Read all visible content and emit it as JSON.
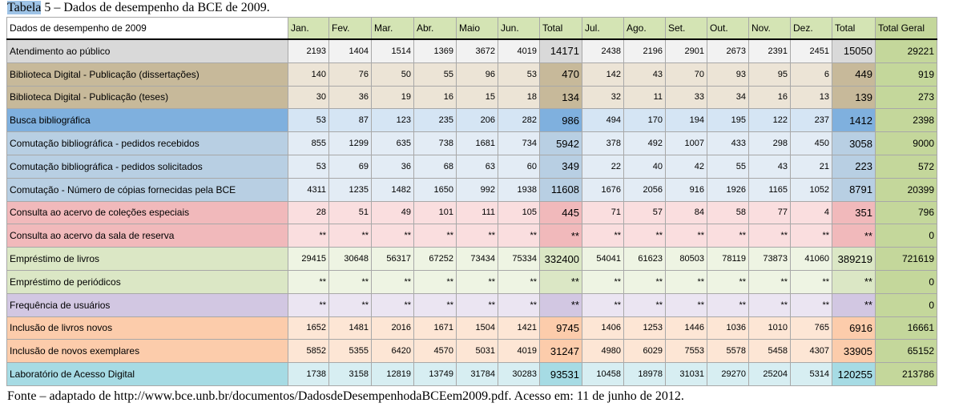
{
  "caption": {
    "prefix": "Tabela",
    "text": " 5 – Dados de desempenho da BCE de 2009."
  },
  "table": {
    "headers": [
      "Dados de desempenho de 2009",
      "Jan.",
      "Fev.",
      "Mar.",
      "Abr.",
      "Maio",
      "Jun.",
      "Total",
      "Jul.",
      "Ago.",
      "Set.",
      "Out.",
      "Nov.",
      "Dez.",
      "Total",
      "Total Geral"
    ],
    "rows": [
      {
        "label": "Atendimento ao público",
        "values": [
          "2193",
          "1404",
          "1514",
          "1369",
          "3672",
          "4019",
          "14171",
          "2438",
          "2196",
          "2901",
          "2673",
          "2391",
          "2451",
          "15050",
          "29221"
        ],
        "colors": {
          "label": "#d9d9d9",
          "cell": "#f2f2f2",
          "total": "#d9d9d9"
        }
      },
      {
        "label": "Biblioteca Digital - Publicação (dissertações)",
        "values": [
          "140",
          "76",
          "50",
          "55",
          "96",
          "53",
          "470",
          "142",
          "43",
          "70",
          "93",
          "95",
          "6",
          "449",
          "919"
        ],
        "colors": {
          "label": "#c7b99a",
          "cell": "#ece4d6",
          "total": "#c7b99a"
        }
      },
      {
        "label": "Biblioteca Digital - Publicação (teses)",
        "values": [
          "30",
          "36",
          "19",
          "16",
          "15",
          "18",
          "134",
          "32",
          "11",
          "33",
          "34",
          "16",
          "13",
          "139",
          "273"
        ],
        "colors": {
          "label": "#c7b99a",
          "cell": "#ece4d6",
          "total": "#c7b99a"
        }
      },
      {
        "label": "Busca bibliográfica",
        "values": [
          "53",
          "87",
          "123",
          "235",
          "206",
          "282",
          "986",
          "494",
          "170",
          "194",
          "195",
          "122",
          "237",
          "1412",
          "2398"
        ],
        "colors": {
          "label": "#7fb0de",
          "cell": "#d5e5f4",
          "total": "#7fb0de"
        }
      },
      {
        "label": "Comutação bibliográfica - pedidos recebidos",
        "values": [
          "855",
          "1299",
          "635",
          "738",
          "1681",
          "734",
          "5942",
          "378",
          "492",
          "1007",
          "433",
          "298",
          "450",
          "3058",
          "9000"
        ],
        "colors": {
          "label": "#b8cfe3",
          "cell": "#e3ecf5",
          "total": "#b8cfe3"
        }
      },
      {
        "label": "Comutação bibliográfica - pedidos solicitados",
        "values": [
          "53",
          "69",
          "36",
          "68",
          "63",
          "60",
          "349",
          "22",
          "40",
          "42",
          "55",
          "43",
          "21",
          "223",
          "572"
        ],
        "colors": {
          "label": "#b8cfe3",
          "cell": "#e3ecf5",
          "total": "#b8cfe3"
        }
      },
      {
        "label": "Comutação - Número de cópias fornecidas pela BCE",
        "values": [
          "4311",
          "1235",
          "1482",
          "1650",
          "992",
          "1938",
          "11608",
          "1676",
          "2056",
          "916",
          "1926",
          "1165",
          "1052",
          "8791",
          "20399"
        ],
        "colors": {
          "label": "#b8cfe3",
          "cell": "#e3ecf5",
          "total": "#b8cfe3"
        }
      },
      {
        "label": "Consulta ao acervo de coleções especiais",
        "values": [
          "28",
          "51",
          "49",
          "101",
          "111",
          "105",
          "445",
          "71",
          "57",
          "84",
          "58",
          "77",
          "4",
          "351",
          "796"
        ],
        "colors": {
          "label": "#f1b9bb",
          "cell": "#fadedf",
          "total": "#f1b9bb"
        }
      },
      {
        "label": "Consulta ao acervo da sala de reserva",
        "values": [
          "**",
          "**",
          "**",
          "**",
          "**",
          "**",
          "**",
          "**",
          "**",
          "**",
          "**",
          "**",
          "**",
          "**",
          "0"
        ],
        "colors": {
          "label": "#f1b9bb",
          "cell": "#fadedf",
          "total": "#f1b9bb"
        }
      },
      {
        "label": "Empréstimo de livros",
        "values": [
          "29415",
          "30648",
          "56317",
          "67252",
          "73434",
          "75334",
          "332400",
          "54041",
          "61623",
          "80503",
          "78119",
          "73873",
          "41060",
          "389219",
          "721619"
        ],
        "colors": {
          "label": "#dbe7c5",
          "cell": "#eef4e3",
          "total": "#dbe7c5"
        }
      },
      {
        "label": "Empréstimo de periódicos",
        "values": [
          "**",
          "**",
          "**",
          "**",
          "**",
          "**",
          "**",
          "**",
          "**",
          "**",
          "**",
          "**",
          "**",
          "**",
          "0"
        ],
        "colors": {
          "label": "#dbe7c5",
          "cell": "#eef4e3",
          "total": "#dbe7c5"
        }
      },
      {
        "label": "Frequência de usuários",
        "values": [
          "**",
          "**",
          "**",
          "**",
          "**",
          "**",
          "**",
          "**",
          "**",
          "**",
          "**",
          "**",
          "**",
          "**",
          "0"
        ],
        "colors": {
          "label": "#d2c7e2",
          "cell": "#ebe5f2",
          "total": "#d2c7e2"
        }
      },
      {
        "label": "Inclusão de livros novos",
        "values": [
          "1652",
          "1481",
          "2016",
          "1671",
          "1504",
          "1421",
          "9745",
          "1406",
          "1253",
          "1446",
          "1036",
          "1010",
          "765",
          "6916",
          "16661"
        ],
        "colors": {
          "label": "#fcccab",
          "cell": "#fde6d5",
          "total": "#fcccab"
        }
      },
      {
        "label": "Inclusão de novos exemplares",
        "values": [
          "5852",
          "5355",
          "6420",
          "4570",
          "5031",
          "4019",
          "31247",
          "4980",
          "6029",
          "7553",
          "5578",
          "5458",
          "4307",
          "33905",
          "65152"
        ],
        "colors": {
          "label": "#fcccab",
          "cell": "#fde6d5",
          "total": "#fcccab"
        }
      },
      {
        "label": "Laboratório de Acesso Digital",
        "values": [
          "1738",
          "3158",
          "12819",
          "13749",
          "31784",
          "30283",
          "93531",
          "10458",
          "18978",
          "31031",
          "29270",
          "25204",
          "5314",
          "120255",
          "213786"
        ],
        "colors": {
          "label": "#a6dbe4",
          "cell": "#d7eef2",
          "total": "#a6dbe4"
        }
      }
    ]
  },
  "source": "Fonte – adaptado de http://www.bce.unb.br/documentos/DadosdeDesempenhodaBCEem2009.pdf. Acesso em: 11 de junho de 2012."
}
